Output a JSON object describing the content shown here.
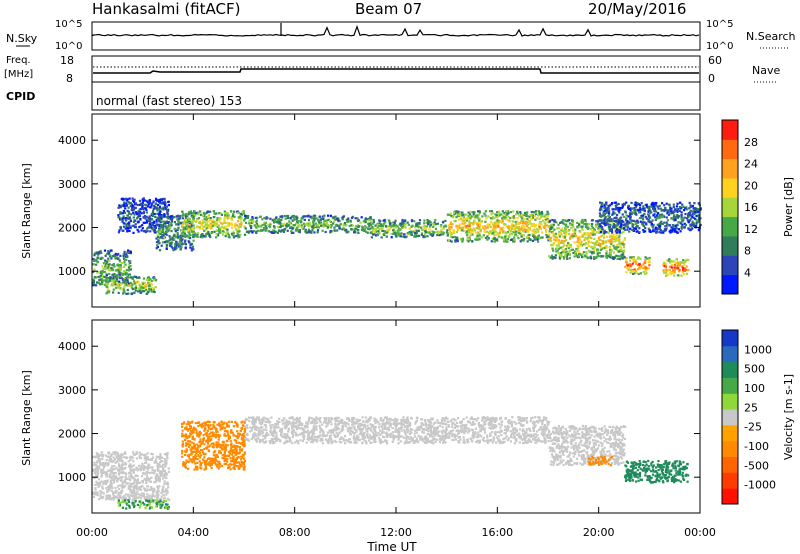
{
  "header": {
    "station": "Hankasalmi (fitACF)",
    "beam": "Beam 07",
    "date": "20/May/2016"
  },
  "noise_panel": {
    "left_label": "N.Sky",
    "right_label": "N.Search",
    "left_ticks": [
      "10^5",
      "10^0"
    ],
    "right_ticks": [
      "10^5",
      "10^0"
    ]
  },
  "freq_panel": {
    "left_label_line1": "Freq.",
    "left_label_line2": "[MHz]",
    "right_label": "Nave",
    "left_ticks": [
      "18",
      "8"
    ],
    "right_ticks": [
      "60",
      "0"
    ]
  },
  "cpid_panel": {
    "label": "CPID",
    "program": "normal (fast stereo) 153"
  },
  "axes": {
    "ylabel": "Slant Range [km]",
    "y_ticks": [
      "1000",
      "2000",
      "3000",
      "4000"
    ],
    "x_ticks": [
      "00:00",
      "04:00",
      "08:00",
      "12:00",
      "16:00",
      "20:00",
      "00:00"
    ],
    "xlabel": "Time UT"
  },
  "power_colorbar": {
    "label": "Power [dB]",
    "ticks": [
      "4",
      "8",
      "12",
      "16",
      "20",
      "24",
      "28"
    ],
    "colors": [
      "#0018ff",
      "#2c46b8",
      "#2f7d5a",
      "#47a848",
      "#a7d63c",
      "#ffd21f",
      "#ffa31f",
      "#ff6a10",
      "#ff1c10"
    ]
  },
  "velocity_colorbar": {
    "label": "Velocity [m s-1]",
    "ticks": [
      "1000",
      "500",
      "100",
      "25",
      "-25",
      "-100",
      "-500",
      "-1000"
    ],
    "colors": [
      "#1638c8",
      "#2a6abd",
      "#1f8a5a",
      "#47a848",
      "#8fd83a",
      "#c8c8c8",
      "#ffa200",
      "#ff8a00",
      "#ff6400",
      "#ff3c00",
      "#ff1000"
    ]
  },
  "chart_data": {
    "type": "heatmap",
    "x_range": [
      "00:00",
      "24:00"
    ],
    "ylim": [
      180,
      4600
    ],
    "power_bands": [
      {
        "t0": 0.0,
        "t1": 1.5,
        "r0": 700,
        "r1": 1500,
        "power": 14
      },
      {
        "t0": 0.5,
        "t1": 2.5,
        "r0": 500,
        "r1": 900,
        "power": 18
      },
      {
        "t0": 1.0,
        "t1": 3.0,
        "r0": 1900,
        "r1": 2700,
        "power": 6
      },
      {
        "t0": 2.5,
        "t1": 4.0,
        "r0": 1500,
        "r1": 2300,
        "power": 12
      },
      {
        "t0": 3.5,
        "t1": 6.0,
        "r0": 1800,
        "r1": 2400,
        "power": 20
      },
      {
        "t0": 6.0,
        "t1": 11.0,
        "r0": 1900,
        "r1": 2300,
        "power": 14
      },
      {
        "t0": 11.0,
        "t1": 14.0,
        "r0": 1800,
        "r1": 2200,
        "power": 16
      },
      {
        "t0": 14.0,
        "t1": 18.0,
        "r0": 1700,
        "r1": 2400,
        "power": 22
      },
      {
        "t0": 18.0,
        "t1": 21.0,
        "r0": 1300,
        "r1": 2200,
        "power": 20
      },
      {
        "t0": 21.0,
        "t1": 22.0,
        "r0": 950,
        "r1": 1350,
        "power": 28
      },
      {
        "t0": 22.5,
        "t1": 23.5,
        "r0": 900,
        "r1": 1300,
        "power": 28
      },
      {
        "t0": 20.0,
        "t1": 24.0,
        "r0": 1900,
        "r1": 2600,
        "power": 8
      }
    ],
    "velocity_bands": [
      {
        "t0": 0.0,
        "t1": 3.0,
        "r0": 500,
        "r1": 1600,
        "velocity": 0
      },
      {
        "t0": 1.0,
        "t1": 3.0,
        "r0": 300,
        "r1": 500,
        "velocity": 100
      },
      {
        "t0": 3.5,
        "t1": 6.0,
        "r0": 1200,
        "r1": 2300,
        "velocity": -200
      },
      {
        "t0": 6.0,
        "t1": 18.0,
        "r0": 1800,
        "r1": 2400,
        "velocity": 0
      },
      {
        "t0": 18.0,
        "t1": 21.0,
        "r0": 1300,
        "r1": 2200,
        "velocity": 0
      },
      {
        "t0": 19.5,
        "t1": 20.5,
        "r0": 1300,
        "r1": 1500,
        "velocity": -300
      },
      {
        "t0": 21.0,
        "t1": 23.5,
        "r0": 900,
        "r1": 1400,
        "velocity": 300
      }
    ]
  }
}
